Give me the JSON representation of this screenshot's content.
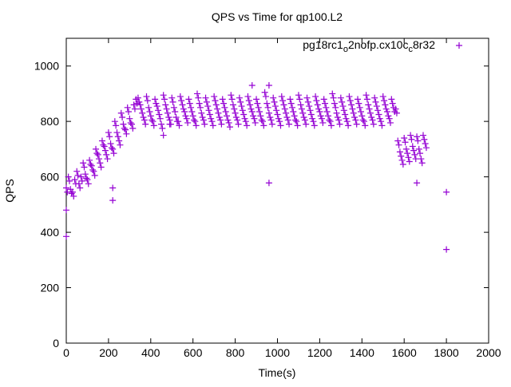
{
  "chart_data": {
    "type": "scatter",
    "title": "QPS vs Time for qp100.L2",
    "xlabel": "Time(s)",
    "ylabel": "QPS",
    "xlim": [
      0,
      2000
    ],
    "ylim": [
      0,
      1100
    ],
    "xticks": [
      0,
      200,
      400,
      600,
      800,
      1000,
      1200,
      1400,
      1600,
      1800,
      2000
    ],
    "yticks": [
      0,
      200,
      400,
      600,
      800,
      1000
    ],
    "grid": false,
    "legend_position": "top-right",
    "series": [
      {
        "name": "pg18rc1_o2nofp.cx10c_c8r32",
        "name_parts": [
          "pg18rc1",
          "o",
          "2nofp.cx10c",
          "c",
          "8r32"
        ],
        "color": "#9400d3",
        "marker": "plus",
        "x_start": 0,
        "x_step": 10,
        "y": [
          560,
          600,
          555,
          545,
          590,
          620,
          575,
          600,
          650,
          610,
          590,
          660,
          640,
          620,
          700,
          680,
          650,
          730,
          710,
          680,
          760,
          720,
          700,
          800,
          760,
          730,
          830,
          790,
          770,
          850,
          810,
          790,
          860,
          880,
          885,
          860,
          830,
          805,
          890,
          850,
          820,
          800,
          880,
          855,
          825,
          790,
          895,
          860,
          830,
          805,
          885,
          850,
          815,
          800,
          890,
          860,
          835,
          810,
          880,
          850,
          820,
          800,
          900,
          865,
          830,
          805,
          885,
          855,
          825,
          800,
          890,
          860,
          830,
          805,
          880,
          850,
          820,
          795,
          895,
          860,
          830,
          805,
          885,
          855,
          825,
          800,
          890,
          860,
          835,
          810,
          880,
          850,
          820,
          800,
          905,
          865,
          830,
          805,
          885,
          855,
          825,
          800,
          890,
          860,
          830,
          805,
          880,
          850,
          820,
          800,
          895,
          860,
          830,
          805,
          885,
          855,
          825,
          800,
          890,
          860,
          835,
          810,
          880,
          850,
          820,
          800,
          900,
          865,
          830,
          805,
          885,
          855,
          825,
          800,
          890,
          860,
          830,
          805,
          880,
          850,
          820,
          800,
          895,
          860,
          830,
          805,
          885,
          855,
          825,
          800,
          890,
          860,
          835,
          810,
          880,
          850,
          845,
          730,
          690,
          660,
          740,
          700,
          670,
          750,
          710,
          680,
          745,
          700,
          665,
          750,
          720
        ],
        "outliers": [
          [
            0,
            385
          ],
          [
            0,
            480
          ],
          [
            220,
            515
          ],
          [
            220,
            560
          ],
          [
            460,
            750
          ],
          [
            490,
            790
          ],
          [
            960,
            578
          ],
          [
            1660,
            578
          ],
          [
            1800,
            545
          ],
          [
            1800,
            338
          ],
          [
            880,
            930
          ],
          [
            960,
            930
          ]
        ]
      }
    ]
  }
}
